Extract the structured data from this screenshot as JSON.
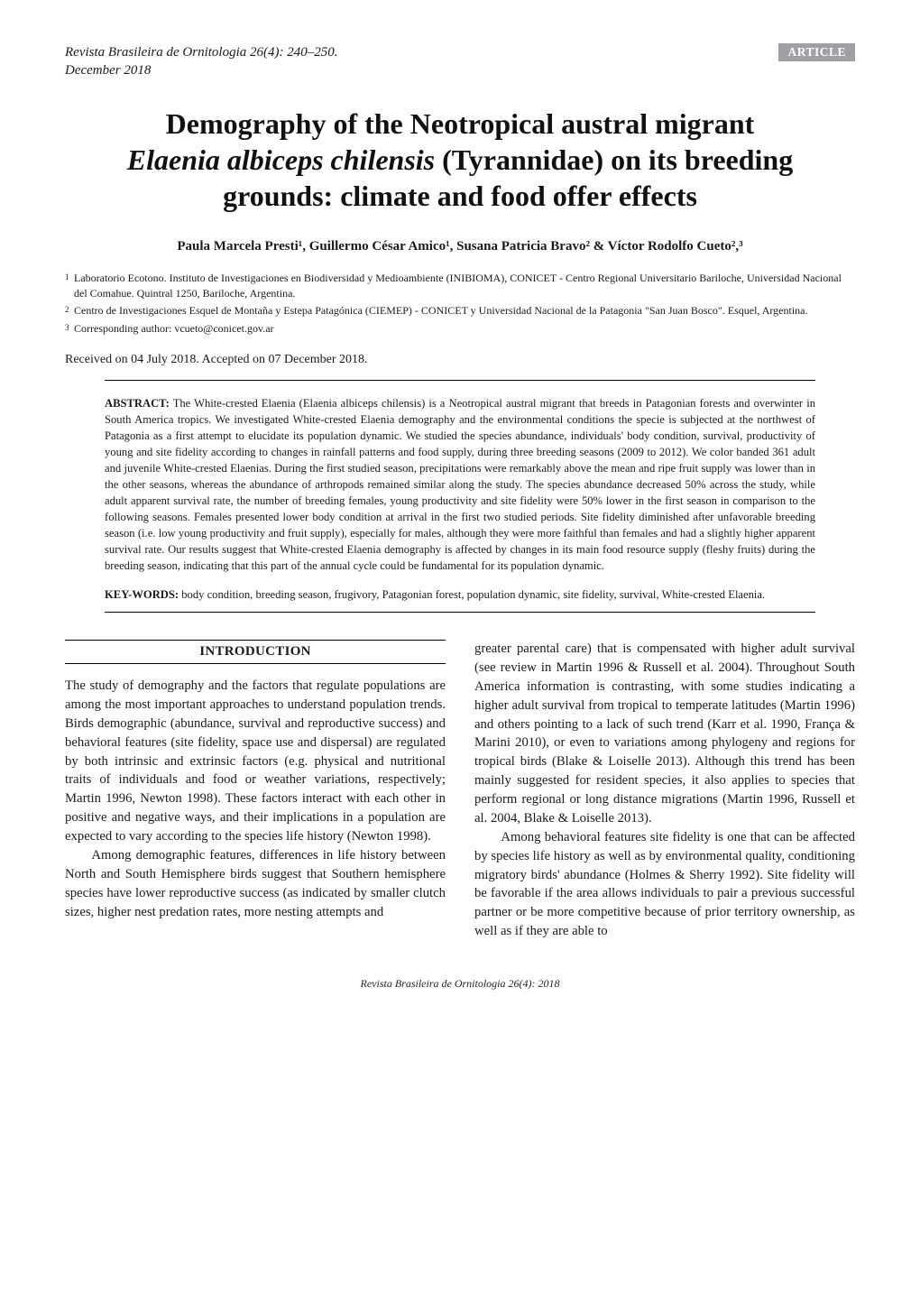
{
  "header": {
    "journal_line1": "Revista Brasileira de Ornitologia 26(4): 240–250.",
    "journal_line2": "December 2018",
    "badge": "ARTICLE"
  },
  "title": {
    "line1": "Demography of the Neotropical austral migrant",
    "line2_pre": "",
    "line2_italic": "Elaenia albiceps chilensis",
    "line2_post": " (Tyrannidae) on its breeding",
    "line3": "grounds: climate and food offer effects"
  },
  "authors": "Paula Marcela Presti¹, Guillermo César Amico¹, Susana Patricia Bravo² & Víctor Rodolfo Cueto²,³",
  "affiliations": [
    {
      "num": "1",
      "text": "Laboratorio Ecotono. Instituto de Investigaciones en Biodiversidad y Medioambiente (INIBIOMA), CONICET - Centro Regional Universitario Bariloche, Universidad Nacional del Comahue. Quintral 1250, Bariloche, Argentina."
    },
    {
      "num": "2",
      "text": "Centro de Investigaciones Esquel de Montaña y Estepa Patagónica (CIEMEP) - CONICET y Universidad Nacional de la Patagonia \"San Juan Bosco\". Esquel, Argentina."
    },
    {
      "num": "3",
      "text": "Corresponding author: vcueto@conicet.gov.ar"
    }
  ],
  "received": "Received on 04 July 2018. Accepted on 07 December 2018.",
  "abstract": {
    "label": "ABSTRACT:",
    "text": " The White-crested Elaenia (Elaenia albiceps chilensis) is a Neotropical austral migrant that breeds in Patagonian forests and overwinter in South America tropics. We investigated White-crested Elaenia demography and the environmental conditions the specie is subjected at the northwest of Patagonia as a first attempt to elucidate its population dynamic. We studied the species abundance, individuals' body condition, survival, productivity of young and site fidelity according to changes in rainfall patterns and food supply, during three breeding seasons (2009 to 2012). We color banded 361 adult and juvenile White-crested Elaenias. During the first studied season, precipitations were remarkably above the mean and ripe fruit supply was lower than in the other seasons, whereas the abundance of arthropods remained similar along the study. The species abundance decreased 50% across the study, while adult apparent survival rate, the number of breeding females, young productivity and site fidelity were 50% lower in the first season in comparison to the following seasons. Females presented lower body condition at arrival in the first two studied periods. Site fidelity diminished after unfavorable breeding season (i.e. low young productivity and fruit supply), especially for males, although they were more faithful than females and had a slightly higher apparent survival rate. Our results suggest that White-crested Elaenia demography is affected by changes in its main food resource supply (fleshy fruits) during the breeding season, indicating that this part of the annual cycle could be fundamental for its population dynamic."
  },
  "keywords": {
    "label": "KEY-WORDS:",
    "text": " body condition, breeding season, frugivory, Patagonian forest, population dynamic, site fidelity, survival, White-crested Elaenia."
  },
  "section_heading": "INTRODUCTION",
  "col_left": {
    "p1": "The study of demography and the factors that regulate populations are among the most important approaches to understand population trends. Birds demographic (abundance, survival and reproductive success) and behavioral features (site fidelity, space use and dispersal) are regulated by both intrinsic and extrinsic factors (e.g. physical and nutritional traits of individuals and food or weather variations, respectively; Martin 1996, Newton 1998). These factors interact with each other in positive and negative ways, and their implications in a population are expected to vary according to the species life history (Newton 1998).",
    "p2": "Among demographic features, differences in life history between North and South Hemisphere birds suggest that Southern hemisphere species have lower reproductive success (as indicated by smaller clutch sizes, higher nest predation rates, more nesting attempts and"
  },
  "col_right": {
    "p1": "greater parental care) that is compensated with higher adult survival (see review in Martin 1996 & Russell et al. 2004). Throughout South America information is contrasting, with some studies indicating a higher adult survival from tropical to temperate latitudes (Martin 1996) and others pointing to a lack of such trend (Karr et al. 1990, França & Marini 2010), or even to variations among phylogeny and regions for tropical birds (Blake & Loiselle 2013). Although this trend has been mainly suggested for resident species, it also applies to species that perform regional or long distance migrations (Martin 1996, Russell et al. 2004, Blake & Loiselle 2013).",
    "p2": "Among behavioral features site fidelity is one that can be affected by species life history as well as by environmental quality, conditioning migratory birds' abundance (Holmes & Sherry 1992). Site fidelity will be favorable if the area allows individuals to pair a previous successful partner or be more competitive because of prior territory ownership, as well as if they are able to"
  },
  "footer": "Revista Brasileira de Ornitologia 26(4): 2018",
  "colors": {
    "badge_bg": "#9ea0a3",
    "badge_fg": "#ffffff",
    "text": "#1a1a1a",
    "bg": "#ffffff"
  },
  "fonts": {
    "title_pt": 32,
    "body_pt": 14.7,
    "abstract_pt": 12.6,
    "affil_pt": 12,
    "footer_pt": 12
  }
}
